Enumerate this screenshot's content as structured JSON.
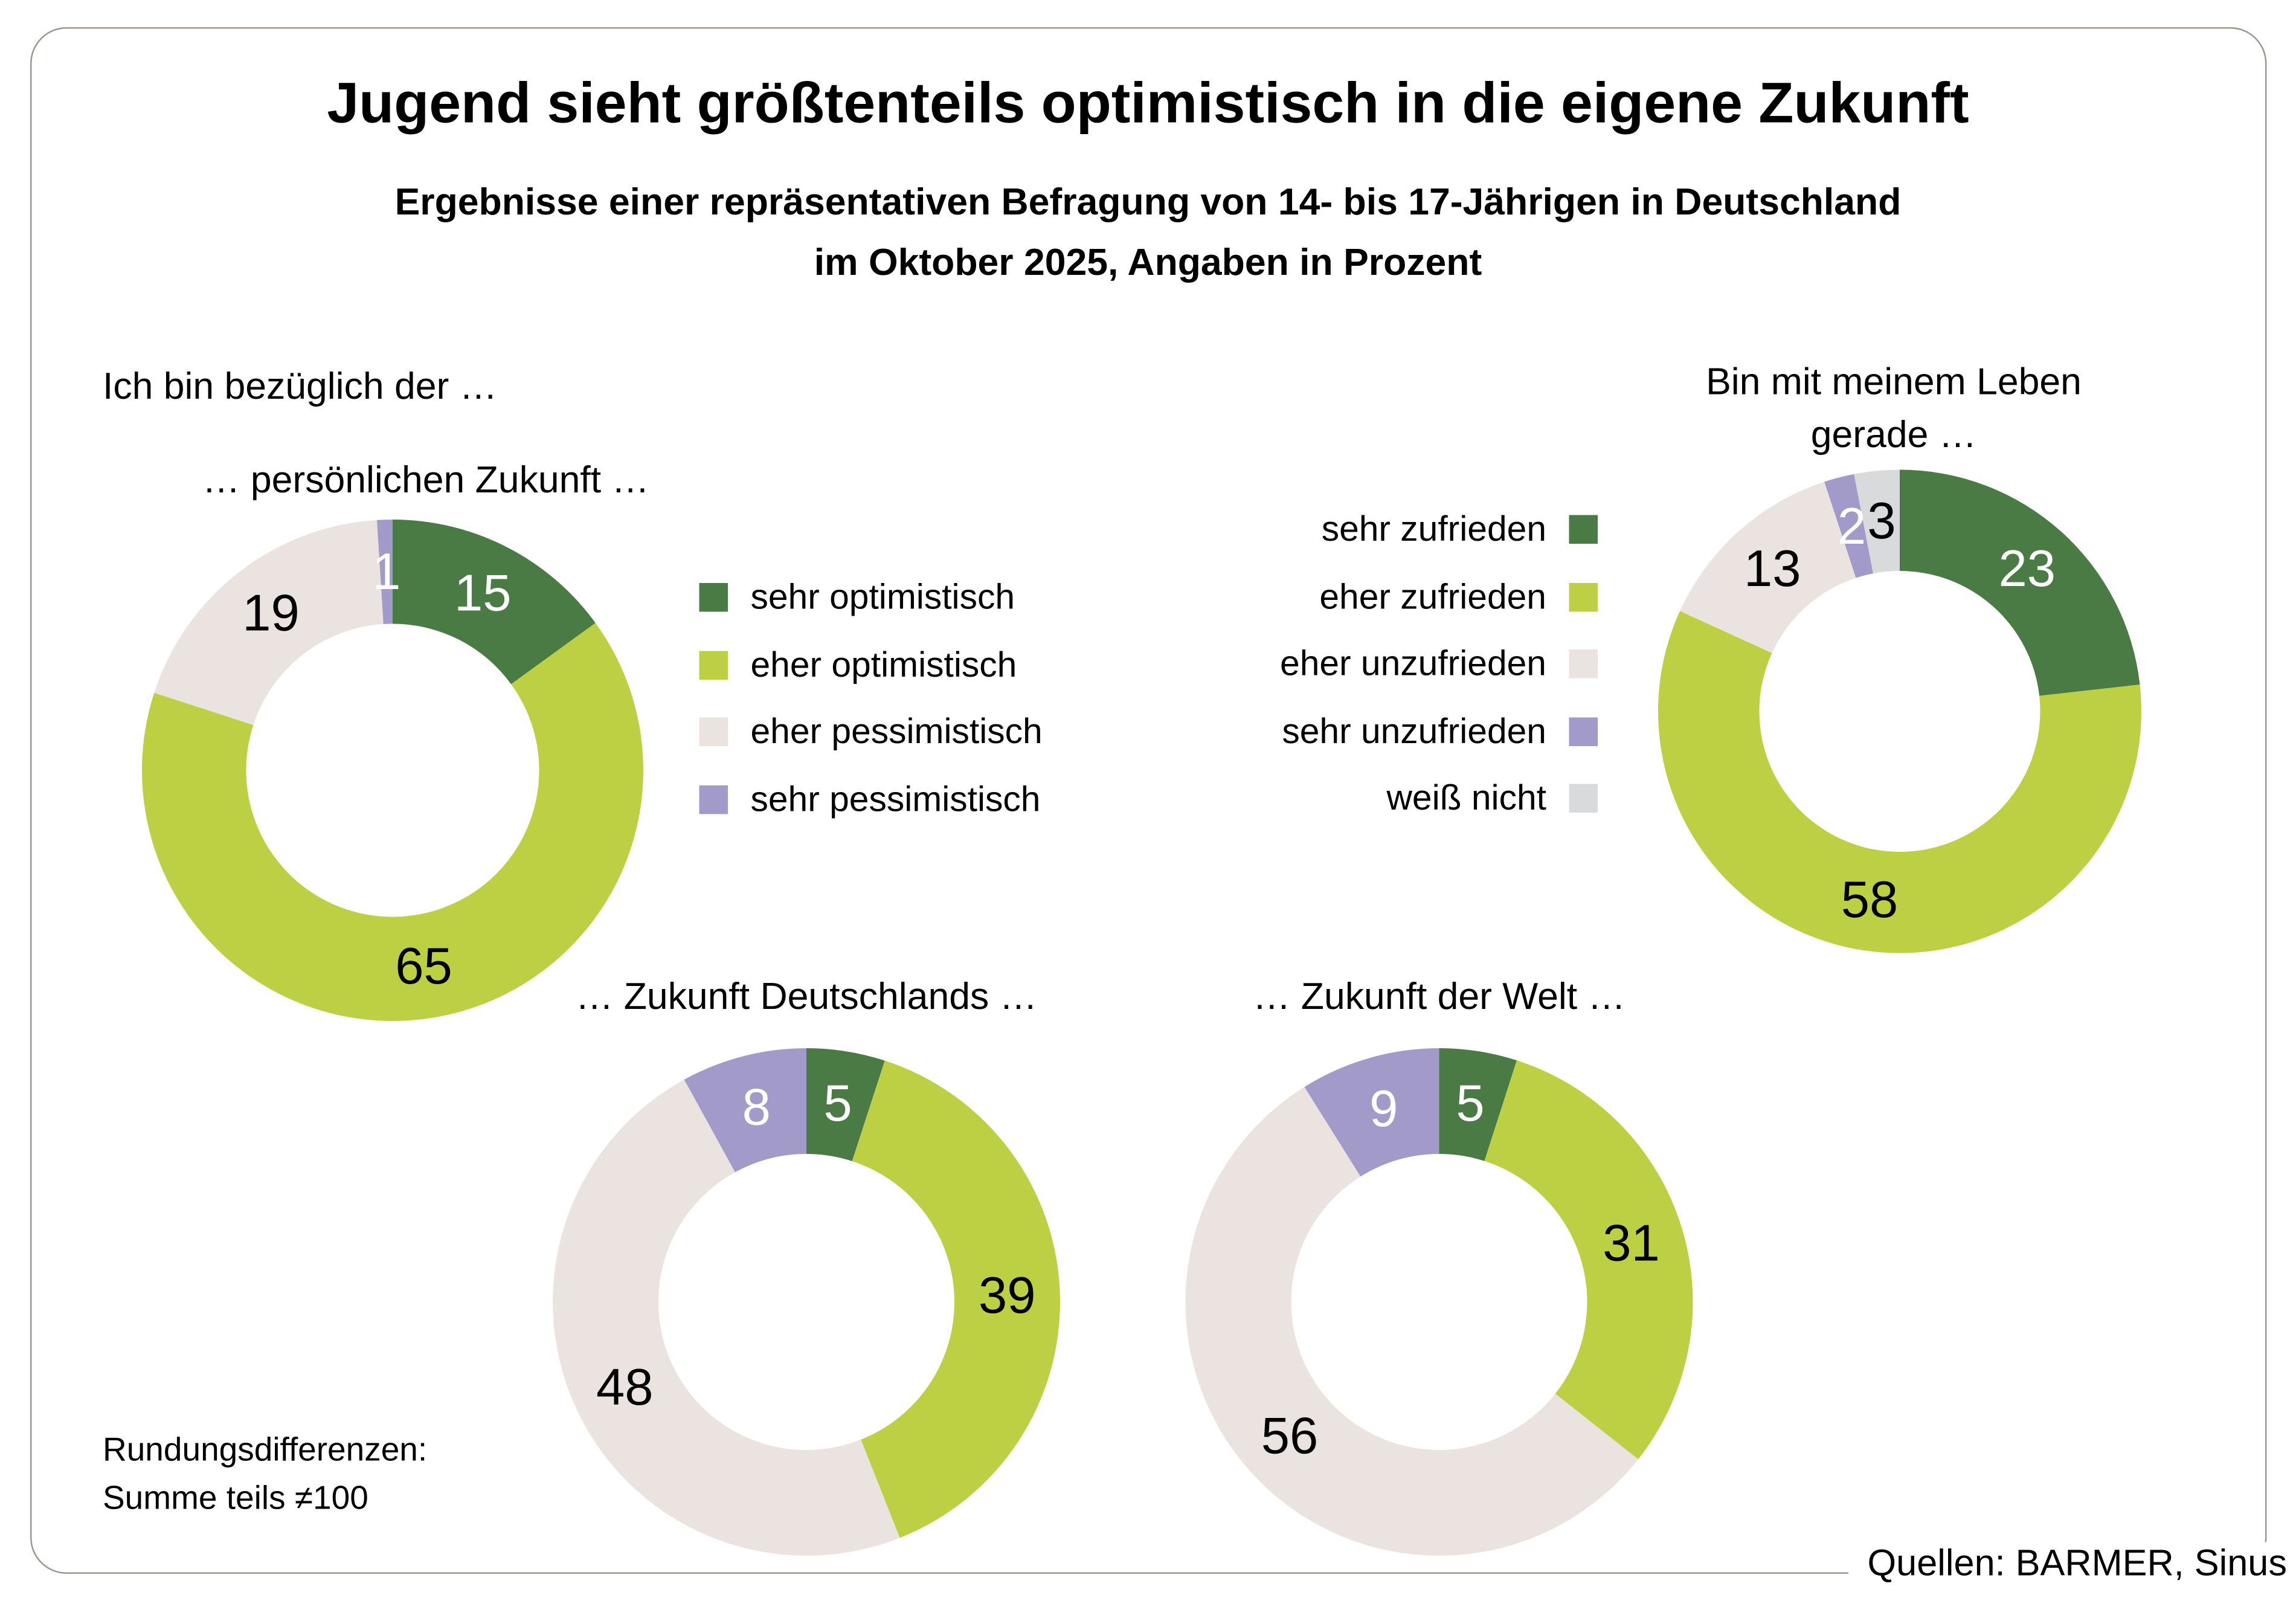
{
  "title": "Jugend sieht größtenteils optimistisch in die eigene Zukunft",
  "subtitle_line1": "Ergebnisse einer repräsentativen Befragung von 14- bis 17-Jährigen in Deutschland",
  "subtitle_line2": "im Oktober 2025, Angaben in Prozent",
  "intro_label": "Ich bin bezüglich der …",
  "footnote_line1": "Rundungsdifferenzen:",
  "footnote_line2": "Summe teils ≠100",
  "source": "Quellen: BARMER, Sinus",
  "colors": {
    "sehr_positiv": "#4a7b44",
    "eher_positiv": "#bdd044",
    "eher_negativ": "#ebe3df",
    "sehr_negativ": "#a29bca",
    "weiss_nicht": "#d8dadb",
    "frame": "#9c968c",
    "text": "#000000",
    "value_label_light": "#ffffff",
    "value_label_dark": "#000000"
  },
  "legend_optimism": [
    {
      "label": "sehr optimistisch",
      "color": "#4a7b44"
    },
    {
      "label": "eher optimistisch",
      "color": "#bdd044"
    },
    {
      "label": "eher pessimistisch",
      "color": "#ebe3df"
    },
    {
      "label": "sehr pessimistisch",
      "color": "#a29bca"
    }
  ],
  "legend_satisfaction": [
    {
      "label": "sehr zufrieden",
      "color": "#4a7b44"
    },
    {
      "label": "eher zufrieden",
      "color": "#bdd044"
    },
    {
      "label": "eher unzufrieden",
      "color": "#ebe3df"
    },
    {
      "label": "sehr unzufrieden",
      "color": "#a29bca"
    },
    {
      "label": "weiß nicht",
      "color": "#d8dadb"
    }
  ],
  "chart_data": [
    {
      "type": "pie",
      "subtype": "donut",
      "key": "persoenliche-zukunft",
      "question_prefix": "Ich bin bezüglich der …",
      "title": "… persönlichen Zukunft …",
      "unit": "percent",
      "slices": [
        {
          "label": "sehr optimistisch",
          "value": 15,
          "color": "#4a7b44",
          "value_label_color": "#ffffff"
        },
        {
          "label": "eher optimistisch",
          "value": 65,
          "color": "#bdd044",
          "value_label_color": "#000000"
        },
        {
          "label": "eher pessimistisch",
          "value": 19,
          "color": "#ebe3df",
          "value_label_color": "#000000"
        },
        {
          "label": "sehr pessimistisch",
          "value": 1,
          "color": "#a29bca",
          "value_label_color": "#ffffff"
        }
      ]
    },
    {
      "type": "pie",
      "subtype": "donut",
      "key": "leben",
      "title": "Bin mit meinem Leben gerade …",
      "title_line1": "Bin mit meinem Leben",
      "title_line2": "gerade …",
      "unit": "percent",
      "slices": [
        {
          "label": "sehr zufrieden",
          "value": 23,
          "color": "#4a7b44",
          "value_label_color": "#ffffff"
        },
        {
          "label": "eher zufrieden",
          "value": 58,
          "color": "#bdd044",
          "value_label_color": "#000000"
        },
        {
          "label": "eher unzufrieden",
          "value": 13,
          "color": "#ebe3df",
          "value_label_color": "#000000"
        },
        {
          "label": "sehr unzufrieden",
          "value": 2,
          "color": "#a29bca",
          "value_label_color": "#ffffff"
        },
        {
          "label": "weiß nicht",
          "value": 3,
          "color": "#d8dadb",
          "value_label_color": "#000000"
        }
      ]
    },
    {
      "type": "pie",
      "subtype": "donut",
      "key": "deutschland",
      "question_prefix": "Ich bin bezüglich der …",
      "title": "… Zukunft Deutschlands …",
      "unit": "percent",
      "slices": [
        {
          "label": "sehr optimistisch",
          "value": 5,
          "color": "#4a7b44",
          "value_label_color": "#ffffff"
        },
        {
          "label": "eher optimistisch",
          "value": 39,
          "color": "#bdd044",
          "value_label_color": "#000000"
        },
        {
          "label": "eher pessimistisch",
          "value": 48,
          "color": "#ebe3df",
          "value_label_color": "#000000"
        },
        {
          "label": "sehr pessimistisch",
          "value": 8,
          "color": "#a29bca",
          "value_label_color": "#ffffff"
        }
      ]
    },
    {
      "type": "pie",
      "subtype": "donut",
      "key": "welt",
      "question_prefix": "Ich bin bezüglich der …",
      "title": "… Zukunft der Welt …",
      "unit": "percent",
      "slices": [
        {
          "label": "sehr optimistisch",
          "value": 5,
          "color": "#4a7b44",
          "value_label_color": "#ffffff"
        },
        {
          "label": "eher optimistisch",
          "value": 31,
          "color": "#bdd044",
          "value_label_color": "#000000"
        },
        {
          "label": "eher pessimistisch",
          "value": 56,
          "color": "#ebe3df",
          "value_label_color": "#000000"
        },
        {
          "label": "sehr pessimistisch",
          "value": 9,
          "color": "#a29bca",
          "value_label_color": "#ffffff"
        }
      ]
    }
  ]
}
